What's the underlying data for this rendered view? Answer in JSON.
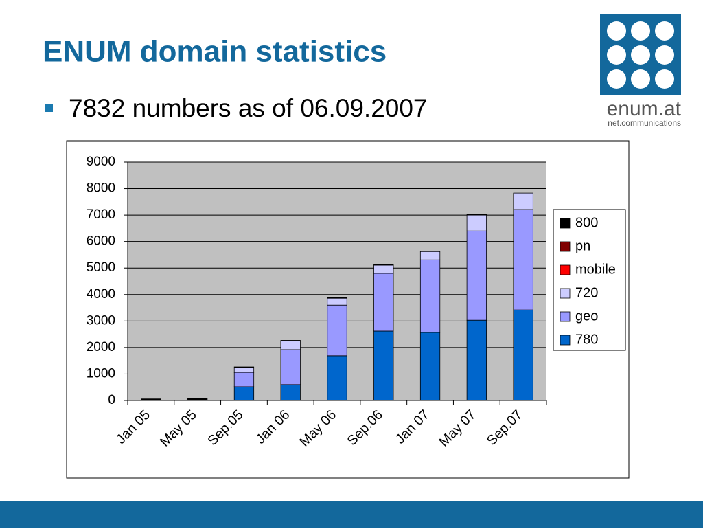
{
  "title": "ENUM domain statistics",
  "bullets": [
    "7832 numbers as of 06.09.2007"
  ],
  "logo": {
    "name": "enum.at",
    "tagline": "net.communications"
  },
  "chart_data": {
    "type": "stacked_bar",
    "categories": [
      "Jan 05",
      "May 05",
      "Sep.05",
      "Jan 06",
      "May 06",
      "Sep.06",
      "Jan 07",
      "May 07",
      "Sep.07"
    ],
    "series": [
      {
        "name": "780",
        "color": "#0066cc",
        "values": [
          0,
          0,
          520,
          600,
          1690,
          2620,
          2570,
          3030,
          3420
        ]
      },
      {
        "name": "geo",
        "color": "#9999ff",
        "values": [
          0,
          0,
          540,
          1320,
          1910,
          2180,
          2740,
          3370,
          3790
        ]
      },
      {
        "name": "720",
        "color": "#ccccff",
        "values": [
          0,
          0,
          180,
          330,
          260,
          310,
          310,
          600,
          620
        ]
      },
      {
        "name": "mobile",
        "color": "#ff0000",
        "values": [
          0,
          0,
          0,
          0,
          0,
          0,
          0,
          0,
          0
        ]
      },
      {
        "name": "pn",
        "color": "#800000",
        "values": [
          0,
          0,
          0,
          0,
          0,
          0,
          0,
          0,
          0
        ]
      },
      {
        "name": "800",
        "color": "#000000",
        "values": [
          60,
          80,
          30,
          20,
          30,
          20,
          0,
          30,
          0
        ]
      }
    ],
    "ylim": [
      0,
      9000
    ],
    "yticks": [
      0,
      1000,
      2000,
      3000,
      4000,
      5000,
      6000,
      7000,
      8000,
      9000
    ],
    "grid": true,
    "legend": "right"
  }
}
